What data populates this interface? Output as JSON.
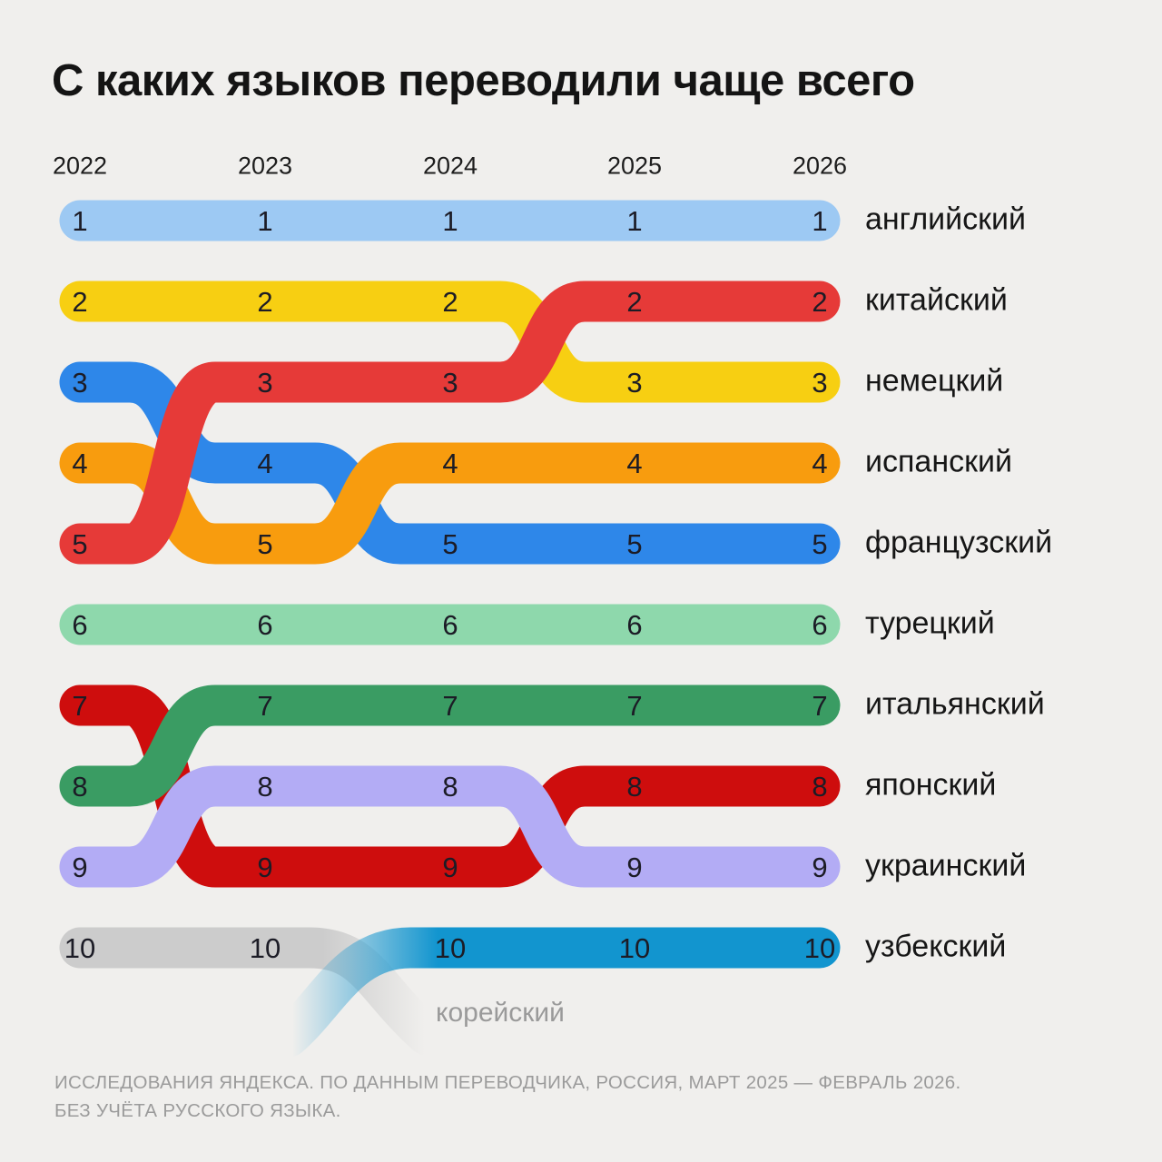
{
  "chart_data": {
    "type": "bump",
    "title": "С каких языков переводили чаще всего",
    "years": [
      "2022",
      "2023",
      "2024",
      "2025",
      "2026"
    ],
    "rank_axis": [
      1,
      2,
      3,
      4,
      5,
      6,
      7,
      8,
      9,
      10
    ],
    "legend_position": "right",
    "grid": false,
    "series": [
      {
        "name": "японский",
        "color": "#ce0d0d",
        "ranks": [
          7,
          9,
          9,
          8,
          8
        ]
      },
      {
        "name": "итальянский",
        "color": "#3a9c63",
        "ranks": [
          8,
          7,
          7,
          7,
          7
        ]
      },
      {
        "name": "украинский",
        "color": "#b3acf5",
        "ranks": [
          9,
          8,
          8,
          9,
          9
        ]
      },
      {
        "name": "немецкий",
        "color": "#f7cf12",
        "ranks": [
          2,
          2,
          2,
          3,
          3
        ]
      },
      {
        "name": "французский",
        "color": "#2e87e9",
        "ranks": [
          3,
          4,
          5,
          5,
          5
        ]
      },
      {
        "name": "испанский",
        "color": "#f89c0e",
        "ranks": [
          4,
          5,
          4,
          4,
          4
        ]
      },
      {
        "name": "китайский",
        "color": "#e63a38",
        "ranks": [
          5,
          3,
          3,
          2,
          2
        ]
      },
      {
        "name": "английский",
        "color": "#9dc9f3",
        "ranks": [
          1,
          1,
          1,
          1,
          1
        ]
      },
      {
        "name": "турецкий",
        "color": "#8ed8ac",
        "ranks": [
          6,
          6,
          6,
          6,
          6
        ]
      },
      {
        "name": "корейский",
        "color": "#cccccc",
        "ranks": [
          10,
          10,
          null,
          null,
          null
        ],
        "exits": true
      },
      {
        "name": "узбекский",
        "color": "#1295cf",
        "ranks": [
          null,
          null,
          10,
          10,
          10
        ],
        "enters": true
      }
    ]
  },
  "source": {
    "line1": "ИССЛЕДОВАНИЯ ЯНДЕКСА. ПО ДАННЫМ ПЕРЕВОДЧИКА, РОССИЯ, МАРТ 2025 — ФЕВРАЛЬ 2026.",
    "line2": "БЕЗ УЧЁТА РУССКОГО ЯЗЫКА."
  },
  "palette": {
    "background": "#f0efed",
    "title_text": "#141414",
    "rank_number": "#1c1c26",
    "label_text": "#161616",
    "muted_text": "#9b9b9b"
  }
}
